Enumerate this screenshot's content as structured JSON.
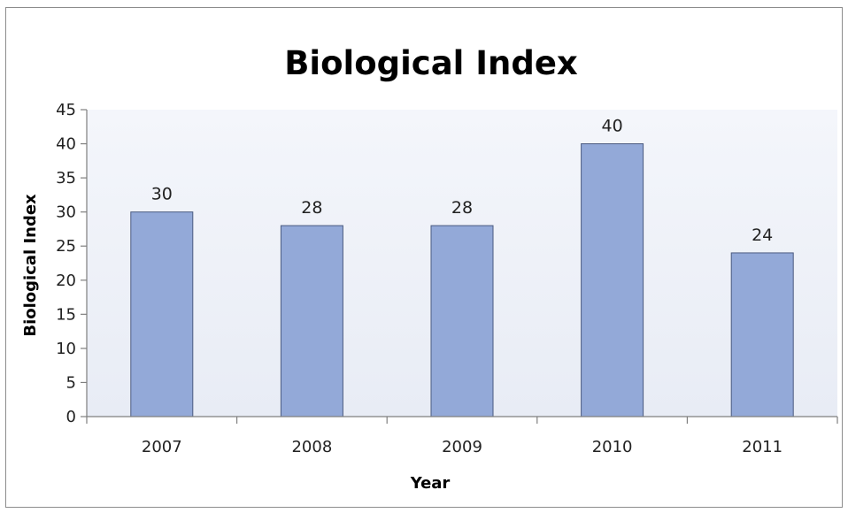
{
  "chart_data": {
    "type": "bar",
    "title": "Biological Index",
    "xlabel": "Year",
    "ylabel": "Biological Index",
    "categories": [
      "2007",
      "2008",
      "2009",
      "2010",
      "2011"
    ],
    "values": [
      30,
      28,
      28,
      40,
      24
    ],
    "ylim": [
      0,
      45
    ],
    "ytick_step": 5,
    "data_labels": true,
    "legend": "none",
    "grid": false,
    "bar_color": "#93a9d8",
    "bar_border": "#4a5a80",
    "plot_area_color": "#edf0f7"
  }
}
